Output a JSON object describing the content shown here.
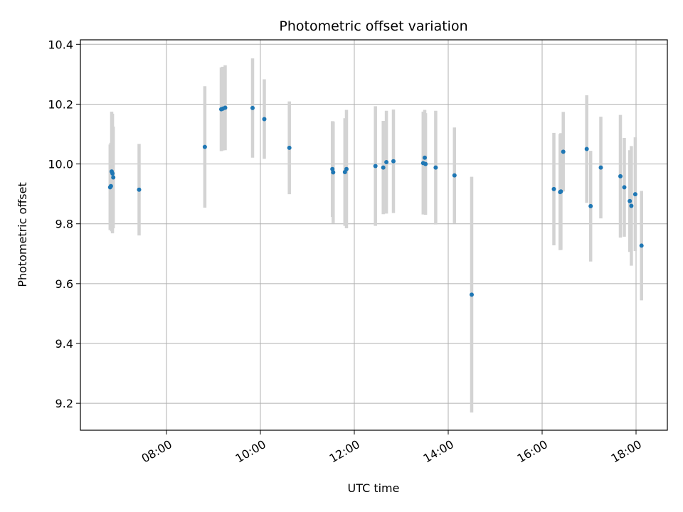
{
  "chart_data": {
    "type": "scatter",
    "title": "Photometric offset variation",
    "xlabel": "UTC time",
    "ylabel": "Photometric offset",
    "x_axis_kind": "time",
    "xlim": [
      "06:10",
      "18:40"
    ],
    "ylim": [
      9.11,
      10.415
    ],
    "grid": true,
    "x_ticks": [
      "08:00",
      "10:00",
      "12:00",
      "14:00",
      "16:00",
      "18:00"
    ],
    "y_ticks": [
      "9.2",
      "9.4",
      "9.6",
      "9.8",
      "10.0",
      "10.2",
      "10.4"
    ],
    "colors": {
      "point": "#1f77b4",
      "errorbar": "#d3d3d3",
      "grid": "#b0b0b0"
    },
    "points": [
      {
        "x": "06:48",
        "y": 9.922,
        "err": 0.143
      },
      {
        "x": "06:49",
        "y": 9.926,
        "err": 0.145
      },
      {
        "x": "06:50",
        "y": 9.975,
        "err": 0.2
      },
      {
        "x": "06:51",
        "y": 9.968,
        "err": 0.2
      },
      {
        "x": "06:52",
        "y": 9.955,
        "err": 0.17
      },
      {
        "x": "07:25",
        "y": 9.914,
        "err": 0.153
      },
      {
        "x": "08:49",
        "y": 10.057,
        "err": 0.203
      },
      {
        "x": "09:10",
        "y": 10.183,
        "err": 0.14
      },
      {
        "x": "09:12",
        "y": 10.185,
        "err": 0.14
      },
      {
        "x": "09:15",
        "y": 10.188,
        "err": 0.142
      },
      {
        "x": "09:50",
        "y": 10.187,
        "err": 0.166
      },
      {
        "x": "10:05",
        "y": 10.15,
        "err": 0.133
      },
      {
        "x": "10:37",
        "y": 10.054,
        "err": 0.155
      },
      {
        "x": "11:32",
        "y": 9.983,
        "err": 0.16
      },
      {
        "x": "11:33",
        "y": 9.972,
        "err": 0.17
      },
      {
        "x": "11:48",
        "y": 9.973,
        "err": 0.18
      },
      {
        "x": "11:50",
        "y": 9.983,
        "err": 0.198
      },
      {
        "x": "12:27",
        "y": 9.993,
        "err": 0.2
      },
      {
        "x": "12:37",
        "y": 9.988,
        "err": 0.156
      },
      {
        "x": "12:41",
        "y": 10.006,
        "err": 0.172
      },
      {
        "x": "12:50",
        "y": 10.009,
        "err": 0.173
      },
      {
        "x": "13:28",
        "y": 10.003,
        "err": 0.172
      },
      {
        "x": "13:30",
        "y": 10.021,
        "err": 0.16
      },
      {
        "x": "13:31",
        "y": 10.0,
        "err": 0.17
      },
      {
        "x": "13:44",
        "y": 9.988,
        "err": 0.19
      },
      {
        "x": "14:08",
        "y": 9.962,
        "err": 0.16
      },
      {
        "x": "14:30",
        "y": 9.563,
        "err": 0.394
      },
      {
        "x": "16:15",
        "y": 9.916,
        "err": 0.188
      },
      {
        "x": "16:23",
        "y": 9.906,
        "err": 0.194
      },
      {
        "x": "16:24",
        "y": 9.908,
        "err": 0.195
      },
      {
        "x": "16:27",
        "y": 10.041,
        "err": 0.133
      },
      {
        "x": "16:57",
        "y": 10.05,
        "err": 0.18
      },
      {
        "x": "17:02",
        "y": 9.859,
        "err": 0.185
      },
      {
        "x": "17:15",
        "y": 9.988,
        "err": 0.17
      },
      {
        "x": "17:40",
        "y": 9.959,
        "err": 0.205
      },
      {
        "x": "17:45",
        "y": 9.922,
        "err": 0.165
      },
      {
        "x": "17:52",
        "y": 9.876,
        "err": 0.17
      },
      {
        "x": "17:54",
        "y": 9.86,
        "err": 0.2
      },
      {
        "x": "17:59",
        "y": 9.899,
        "err": 0.19
      },
      {
        "x": "18:07",
        "y": 9.727,
        "err": 0.183
      }
    ]
  }
}
